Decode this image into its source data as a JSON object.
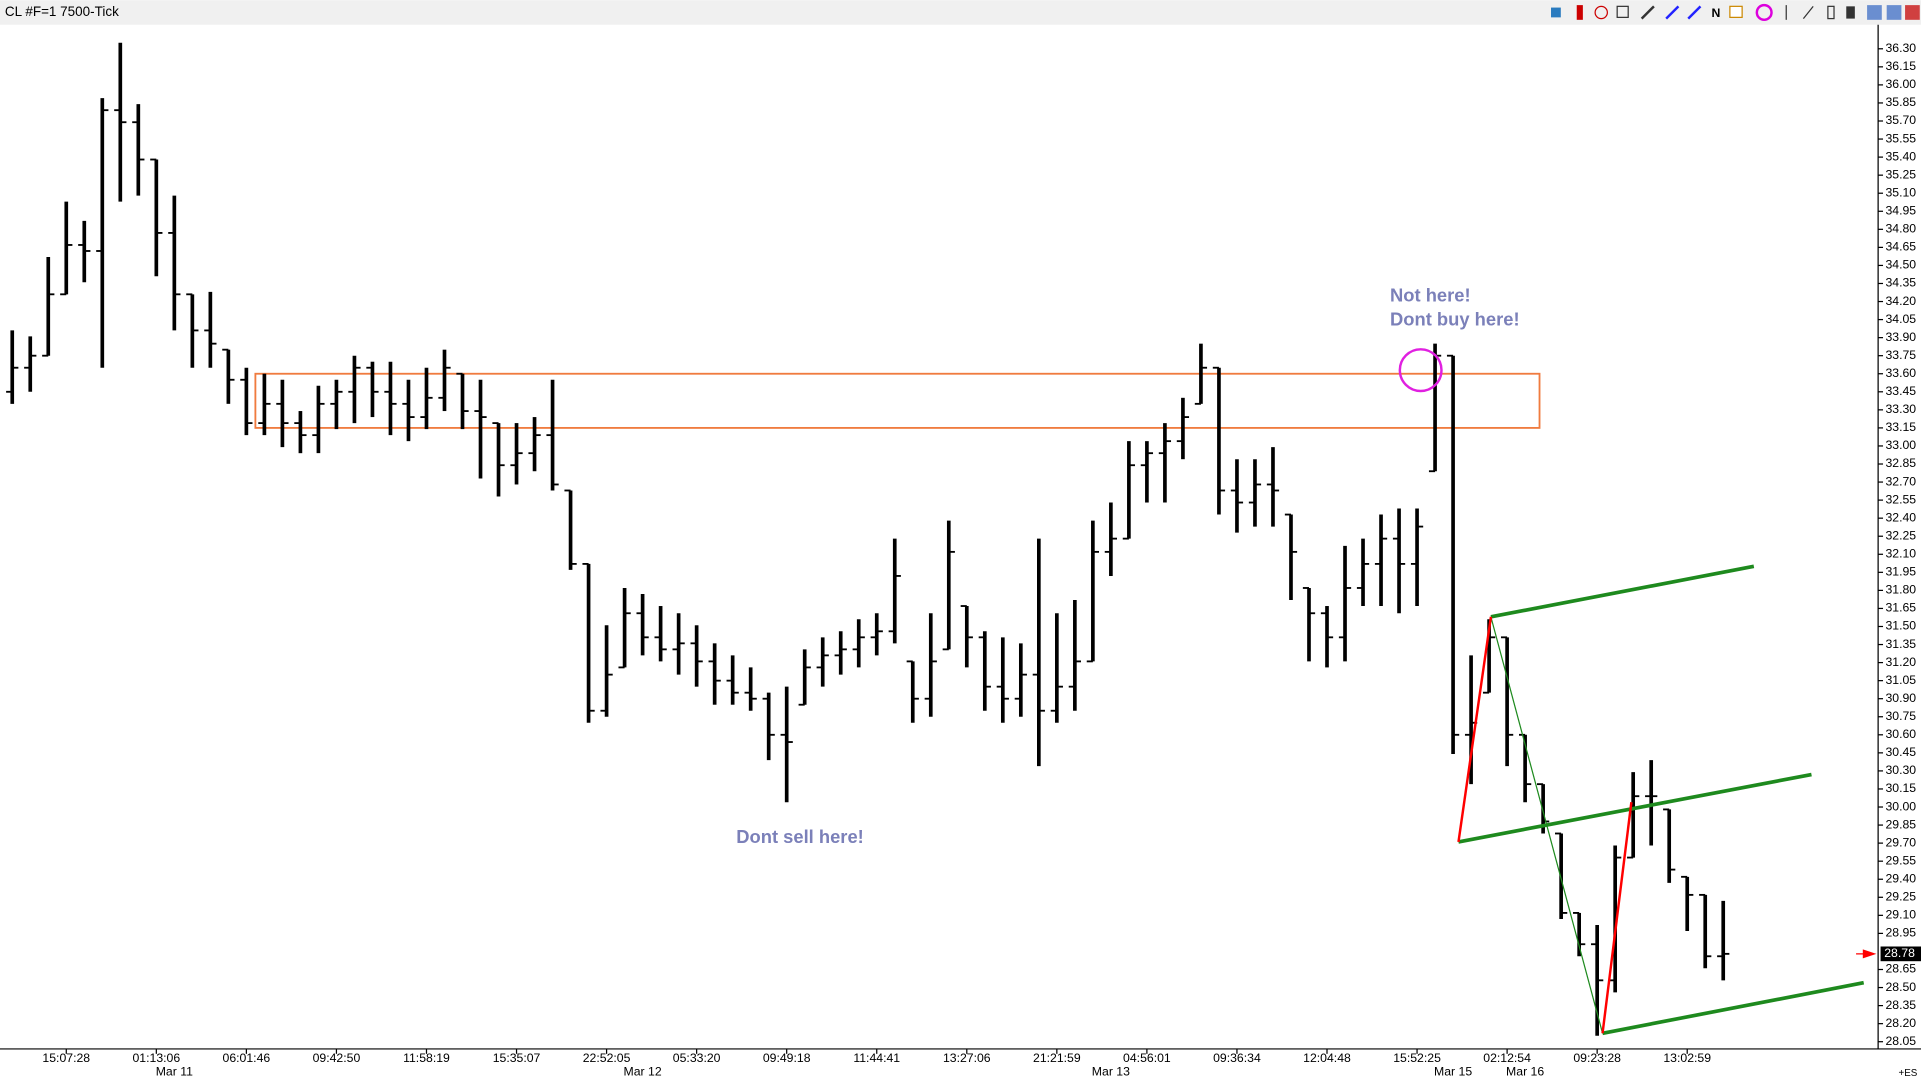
{
  "chart_data": {
    "type": "ohlc",
    "title": "CL #F=1 7500-Tick",
    "open": [
      33.45,
      33.65,
      33.75,
      34.26,
      34.67,
      34.62,
      35.79,
      35.69,
      35.38,
      34.77,
      34.26,
      33.96,
      33.8,
      33.55,
      33.19,
      33.35,
      33.19,
      33.09,
      33.35,
      33.45,
      33.65,
      33.45,
      33.35,
      33.24,
      33.4,
      33.6,
      33.29,
      33.19,
      32.84,
      32.94,
      33.09,
      32.63,
      32.02,
      30.8,
      31.16,
      31.61,
      31.41,
      31.31,
      31.36,
      31.21,
      31.05,
      30.95,
      30.9,
      30.6,
      30.85,
      31.16,
      31.26,
      31.31,
      31.41,
      31.46,
      31.21,
      30.9,
      31.31,
      31.67,
      31.41,
      31.0,
      30.9,
      31.1,
      30.8,
      31.0,
      31.21,
      32.12,
      32.23,
      32.84,
      32.94,
      33.04,
      33.35,
      33.65,
      32.63,
      32.53,
      32.68,
      32.43,
      31.82,
      31.61,
      31.41,
      31.82,
      32.02,
      32.23,
      32.02,
      32.79,
      33.75,
      30.6,
      30.95,
      31.41,
      30.6,
      30.19,
      29.78,
      29.12,
      28.86,
      28.56,
      29.58,
      30.09,
      29.98,
      29.42,
      29.27,
      28.76
    ],
    "high": [
      33.96,
      33.91,
      34.57,
      35.03,
      34.87,
      35.89,
      36.35,
      35.84,
      35.38,
      35.08,
      34.26,
      34.28,
      33.8,
      33.65,
      33.6,
      33.55,
      33.29,
      33.5,
      33.55,
      33.75,
      33.7,
      33.7,
      33.55,
      33.65,
      33.8,
      33.6,
      33.55,
      33.19,
      33.19,
      33.24,
      33.55,
      32.63,
      32.02,
      31.51,
      31.82,
      31.77,
      31.67,
      31.61,
      31.51,
      31.36,
      31.26,
      31.16,
      30.95,
      31.0,
      31.31,
      31.41,
      31.46,
      31.56,
      31.61,
      32.23,
      31.21,
      31.61,
      32.38,
      31.67,
      31.46,
      31.41,
      31.36,
      32.23,
      31.61,
      31.72,
      32.38,
      32.53,
      33.04,
      33.04,
      33.19,
      33.4,
      33.85,
      33.65,
      32.89,
      32.89,
      32.99,
      32.43,
      31.82,
      31.67,
      32.17,
      32.23,
      32.43,
      32.48,
      32.48,
      33.85,
      33.75,
      31.26,
      31.56,
      31.41,
      30.6,
      30.19,
      29.78,
      29.12,
      29.02,
      29.68,
      30.29,
      30.39,
      29.98,
      29.42,
      29.27,
      29.22
    ],
    "low": [
      33.35,
      33.45,
      33.75,
      34.26,
      34.36,
      33.65,
      35.03,
      35.08,
      34.41,
      33.96,
      33.65,
      33.65,
      33.35,
      33.09,
      33.09,
      32.99,
      32.94,
      32.94,
      33.14,
      33.19,
      33.24,
      33.09,
      33.04,
      33.14,
      33.29,
      33.14,
      32.73,
      32.58,
      32.68,
      32.79,
      32.63,
      31.97,
      30.7,
      30.75,
      31.16,
      31.26,
      31.21,
      31.1,
      31.0,
      30.85,
      30.85,
      30.8,
      30.39,
      30.04,
      30.85,
      31.0,
      31.1,
      31.16,
      31.26,
      31.36,
      30.7,
      30.75,
      31.31,
      31.16,
      30.8,
      30.7,
      30.75,
      30.34,
      30.7,
      30.8,
      31.21,
      31.92,
      32.23,
      32.53,
      32.53,
      32.89,
      33.35,
      32.43,
      32.28,
      32.33,
      32.33,
      31.72,
      31.21,
      31.16,
      31.21,
      31.67,
      31.67,
      31.61,
      31.67,
      32.79,
      30.44,
      30.19,
      30.95,
      30.34,
      30.04,
      29.78,
      29.07,
      28.76,
      28.1,
      28.46,
      29.58,
      29.68,
      29.37,
      28.97,
      28.66,
      28.56
    ],
    "close": [
      33.65,
      33.75,
      34.26,
      34.67,
      34.62,
      35.79,
      35.69,
      35.38,
      34.77,
      34.26,
      33.96,
      33.85,
      33.55,
      33.19,
      33.35,
      33.19,
      33.09,
      33.35,
      33.45,
      33.65,
      33.45,
      33.35,
      33.24,
      33.4,
      33.65,
      33.29,
      33.24,
      32.84,
      32.94,
      33.09,
      32.68,
      32.02,
      30.8,
      31.1,
      31.61,
      31.41,
      31.31,
      31.36,
      31.21,
      31.05,
      30.95,
      30.9,
      30.6,
      30.54,
      31.16,
      31.26,
      31.31,
      31.41,
      31.46,
      31.92,
      30.9,
      31.21,
      32.12,
      31.41,
      31.0,
      30.9,
      31.1,
      30.8,
      31.0,
      31.21,
      32.12,
      32.23,
      32.84,
      32.94,
      33.04,
      33.24,
      33.65,
      32.63,
      32.53,
      32.68,
      32.63,
      32.12,
      31.61,
      31.41,
      31.82,
      32.02,
      32.23,
      32.02,
      32.33,
      33.75,
      30.6,
      30.7,
      31.41,
      30.6,
      30.19,
      29.88,
      29.12,
      28.86,
      28.56,
      29.58,
      30.09,
      30.09,
      29.48,
      29.27,
      28.76,
      28.78
    ],
    "color": "#000000",
    "xlim": [
      -0.68,
      103.6
    ],
    "ylim": [
      27.99,
      36.5
    ],
    "yticks": [
      {
        "value": 28.05,
        "label": "28.05"
      },
      {
        "value": 28.2,
        "label": "28.20"
      },
      {
        "value": 28.35,
        "label": "28.35"
      },
      {
        "value": 28.5,
        "label": "28.50"
      },
      {
        "value": 28.65,
        "label": "28.65"
      },
      {
        "value": 28.95,
        "label": "28.95"
      },
      {
        "value": 29.1,
        "label": "29.10"
      },
      {
        "value": 29.25,
        "label": "29.25"
      },
      {
        "value": 29.4,
        "label": "29.40"
      },
      {
        "value": 29.55,
        "label": "29.55"
      },
      {
        "value": 29.7,
        "label": "29.70"
      },
      {
        "value": 29.85,
        "label": "29.85"
      },
      {
        "value": 30,
        "label": "30.00"
      },
      {
        "value": 30.15,
        "label": "30.15"
      },
      {
        "value": 30.3,
        "label": "30.30"
      },
      {
        "value": 30.45,
        "label": "30.45"
      },
      {
        "value": 30.6,
        "label": "30.60"
      },
      {
        "value": 30.75,
        "label": "30.75"
      },
      {
        "value": 30.9,
        "label": "30.90"
      },
      {
        "value": 31.05,
        "label": "31.05"
      },
      {
        "value": 31.2,
        "label": "31.20"
      },
      {
        "value": 31.35,
        "label": "31.35"
      },
      {
        "value": 31.5,
        "label": "31.50"
      },
      {
        "value": 31.65,
        "label": "31.65"
      },
      {
        "value": 31.8,
        "label": "31.80"
      },
      {
        "value": 31.95,
        "label": "31.95"
      },
      {
        "value": 32.1,
        "label": "32.10"
      },
      {
        "value": 32.25,
        "label": "32.25"
      },
      {
        "value": 32.4,
        "label": "32.40"
      },
      {
        "value": 32.55,
        "label": "32.55"
      },
      {
        "value": 32.7,
        "label": "32.70"
      },
      {
        "value": 32.85,
        "label": "32.85"
      },
      {
        "value": 33,
        "label": "33.00"
      },
      {
        "value": 33.15,
        "label": "33.15"
      },
      {
        "value": 33.3,
        "label": "33.30"
      },
      {
        "value": 33.45,
        "label": "33.45"
      },
      {
        "value": 33.6,
        "label": "33.60"
      },
      {
        "value": 33.75,
        "label": "33.75"
      },
      {
        "value": 33.9,
        "label": "33.90"
      },
      {
        "value": 34.05,
        "label": "34.05"
      },
      {
        "value": 34.2,
        "label": "34.20"
      },
      {
        "value": 34.35,
        "label": "34.35"
      },
      {
        "value": 34.5,
        "label": "34.50"
      },
      {
        "value": 34.65,
        "label": "34.65"
      },
      {
        "value": 34.8,
        "label": "34.80"
      },
      {
        "value": 34.95,
        "label": "34.95"
      },
      {
        "value": 35.1,
        "label": "35.10"
      },
      {
        "value": 35.25,
        "label": "35.25"
      },
      {
        "value": 35.4,
        "label": "35.40"
      },
      {
        "value": 35.55,
        "label": "35.55"
      },
      {
        "value": 35.7,
        "label": "35.70"
      },
      {
        "value": 35.85,
        "label": "35.85"
      },
      {
        "value": 36,
        "label": "36.00"
      },
      {
        "value": 36.15,
        "label": "36.15"
      },
      {
        "value": 36.3,
        "label": "36.30"
      }
    ],
    "xticks": [
      {
        "value": 3,
        "label": "15:07:28"
      },
      {
        "value": 8,
        "label": "01:13:06"
      },
      {
        "value": 13,
        "label": "06:01:46"
      },
      {
        "value": 18,
        "label": "09:42:50"
      },
      {
        "value": 23,
        "label": "11:58:19"
      },
      {
        "value": 28,
        "label": "15:35:07"
      },
      {
        "value": 33,
        "label": "22:52:05"
      },
      {
        "value": 38,
        "label": "05:33:20"
      },
      {
        "value": 43,
        "label": "09:49:18"
      },
      {
        "value": 48,
        "label": "11:44:41"
      },
      {
        "value": 53,
        "label": "13:27:06"
      },
      {
        "value": 58,
        "label": "21:21:59"
      },
      {
        "value": 63,
        "label": "04:56:01"
      },
      {
        "value": 68,
        "label": "09:36:34"
      },
      {
        "value": 73,
        "label": "12:04:48"
      },
      {
        "value": 78,
        "label": "15:52:25"
      },
      {
        "value": 83,
        "label": "02:12:54"
      },
      {
        "value": 88,
        "label": "09:23:28"
      },
      {
        "value": 93,
        "label": "13:02:59"
      }
    ],
    "date_labels": [
      {
        "value": 9,
        "label": "Mar 11"
      },
      {
        "value": 35,
        "label": "Mar 12"
      },
      {
        "value": 61,
        "label": "Mar 13"
      },
      {
        "value": 80,
        "label": "Mar 15"
      },
      {
        "value": 84,
        "label": "Mar 16"
      }
    ],
    "last_price": {
      "value": 28.78,
      "label": "28.78",
      "color": "#ff0000"
    },
    "corner_label": "+ES",
    "rectangle": {
      "x": [
        13.5,
        84.8
      ],
      "y": [
        33.6,
        33.15
      ],
      "color": "#f07b3f"
    },
    "lines": [
      {
        "x": [
          82.1,
          96.7
        ],
        "y": [
          31.58,
          32.0
        ],
        "color": "#1e8a1e",
        "width": 3
      },
      {
        "x": [
          80.3,
          99.9
        ],
        "y": [
          29.71,
          30.27
        ],
        "color": "#1e8a1e",
        "width": 3
      },
      {
        "x": [
          88.3,
          102.8
        ],
        "y": [
          28.12,
          28.54
        ],
        "color": "#1e8a1e",
        "width": 3
      },
      {
        "x": [
          82.1,
          88.3
        ],
        "y": [
          31.58,
          28.12
        ],
        "color": "#1e8a1e",
        "width": 1
      },
      {
        "x": [
          80.3,
          82.1
        ],
        "y": [
          29.71,
          31.58
        ],
        "color": "#ff0000",
        "width": 2
      },
      {
        "x": [
          88.3,
          89.9
        ],
        "y": [
          28.12,
          30.04
        ],
        "color": "#ff0000",
        "width": 2
      }
    ],
    "circle": {
      "x": 78.2,
      "y": 33.63,
      "color": "#e020e0"
    },
    "annotations": [
      {
        "text": "Not here!",
        "x": 76.5,
        "y": 34.2
      },
      {
        "text": "Dont buy here!",
        "x": 76.5,
        "y": 34.0
      },
      {
        "text": "Dont sell here!",
        "x": 40.2,
        "y": 29.7
      }
    ]
  }
}
